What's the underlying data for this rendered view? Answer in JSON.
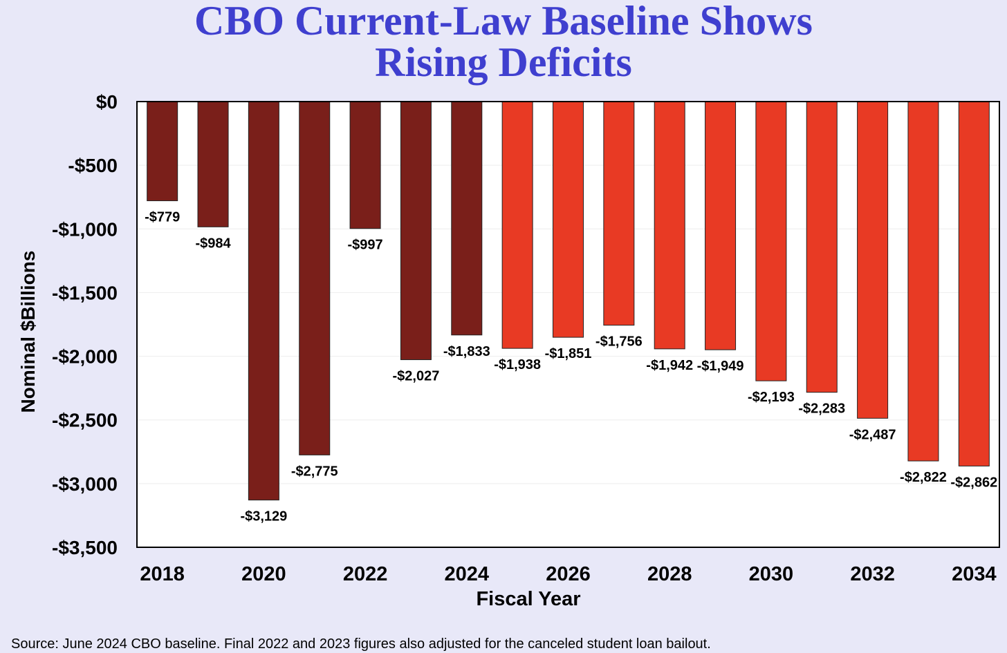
{
  "chart_data": {
    "type": "bar",
    "title_lines": [
      "CBO Current-Law Baseline Shows",
      "Rising Deficits"
    ],
    "xlabel": "Fiscal Year",
    "ylabel": "Nominal $Billions",
    "ylim": [
      -3500,
      0
    ],
    "yticks": [
      0,
      -500,
      -1000,
      -1500,
      -2000,
      -2500,
      -3000,
      -3500
    ],
    "ytick_labels": [
      "$0",
      "-$500",
      "-$1,000",
      "-$1,500",
      "-$2,000",
      "-$2,500",
      "-$3,000",
      "-$3,500"
    ],
    "xtick_labels": [
      "2018",
      "2020",
      "2022",
      "2024",
      "2026",
      "2028",
      "2030",
      "2032",
      "2034"
    ],
    "categories": [
      "2018",
      "2019",
      "2020",
      "2021",
      "2022",
      "2023",
      "2024",
      "2025",
      "2026",
      "2027",
      "2028",
      "2029",
      "2030",
      "2031",
      "2032",
      "2033",
      "2034"
    ],
    "values": [
      -779,
      -984,
      -3129,
      -2775,
      -997,
      -2027,
      -1833,
      -1938,
      -1851,
      -1756,
      -1942,
      -1949,
      -2193,
      -2283,
      -2487,
      -2822,
      -2862
    ],
    "value_labels": [
      "-$779",
      "-$984",
      "-$3,129",
      "-$2,775",
      "-$997",
      "-$2,027",
      "-$1,833",
      "-$1,938",
      "-$1,851",
      "-$1,756",
      "-$1,942",
      "-$1,949",
      "-$2,193",
      "-$2,283",
      "-$2,487",
      "-$2,822",
      "-$2,862"
    ],
    "series_type": [
      "actual",
      "actual",
      "actual",
      "actual",
      "actual",
      "actual",
      "actual",
      "projected",
      "projected",
      "projected",
      "projected",
      "projected",
      "projected",
      "projected",
      "projected",
      "projected",
      "projected"
    ],
    "colors": {
      "actual": "#7a1f1a",
      "projected": "#e83a24",
      "title": "#3f3fcf",
      "background": "#e8e8f8",
      "plot_background": "#ffffff"
    },
    "grid": true
  },
  "source_note": "Source: June 2024 CBO baseline. Final 2022 and 2023 figures also adjusted for the canceled student loan bailout."
}
